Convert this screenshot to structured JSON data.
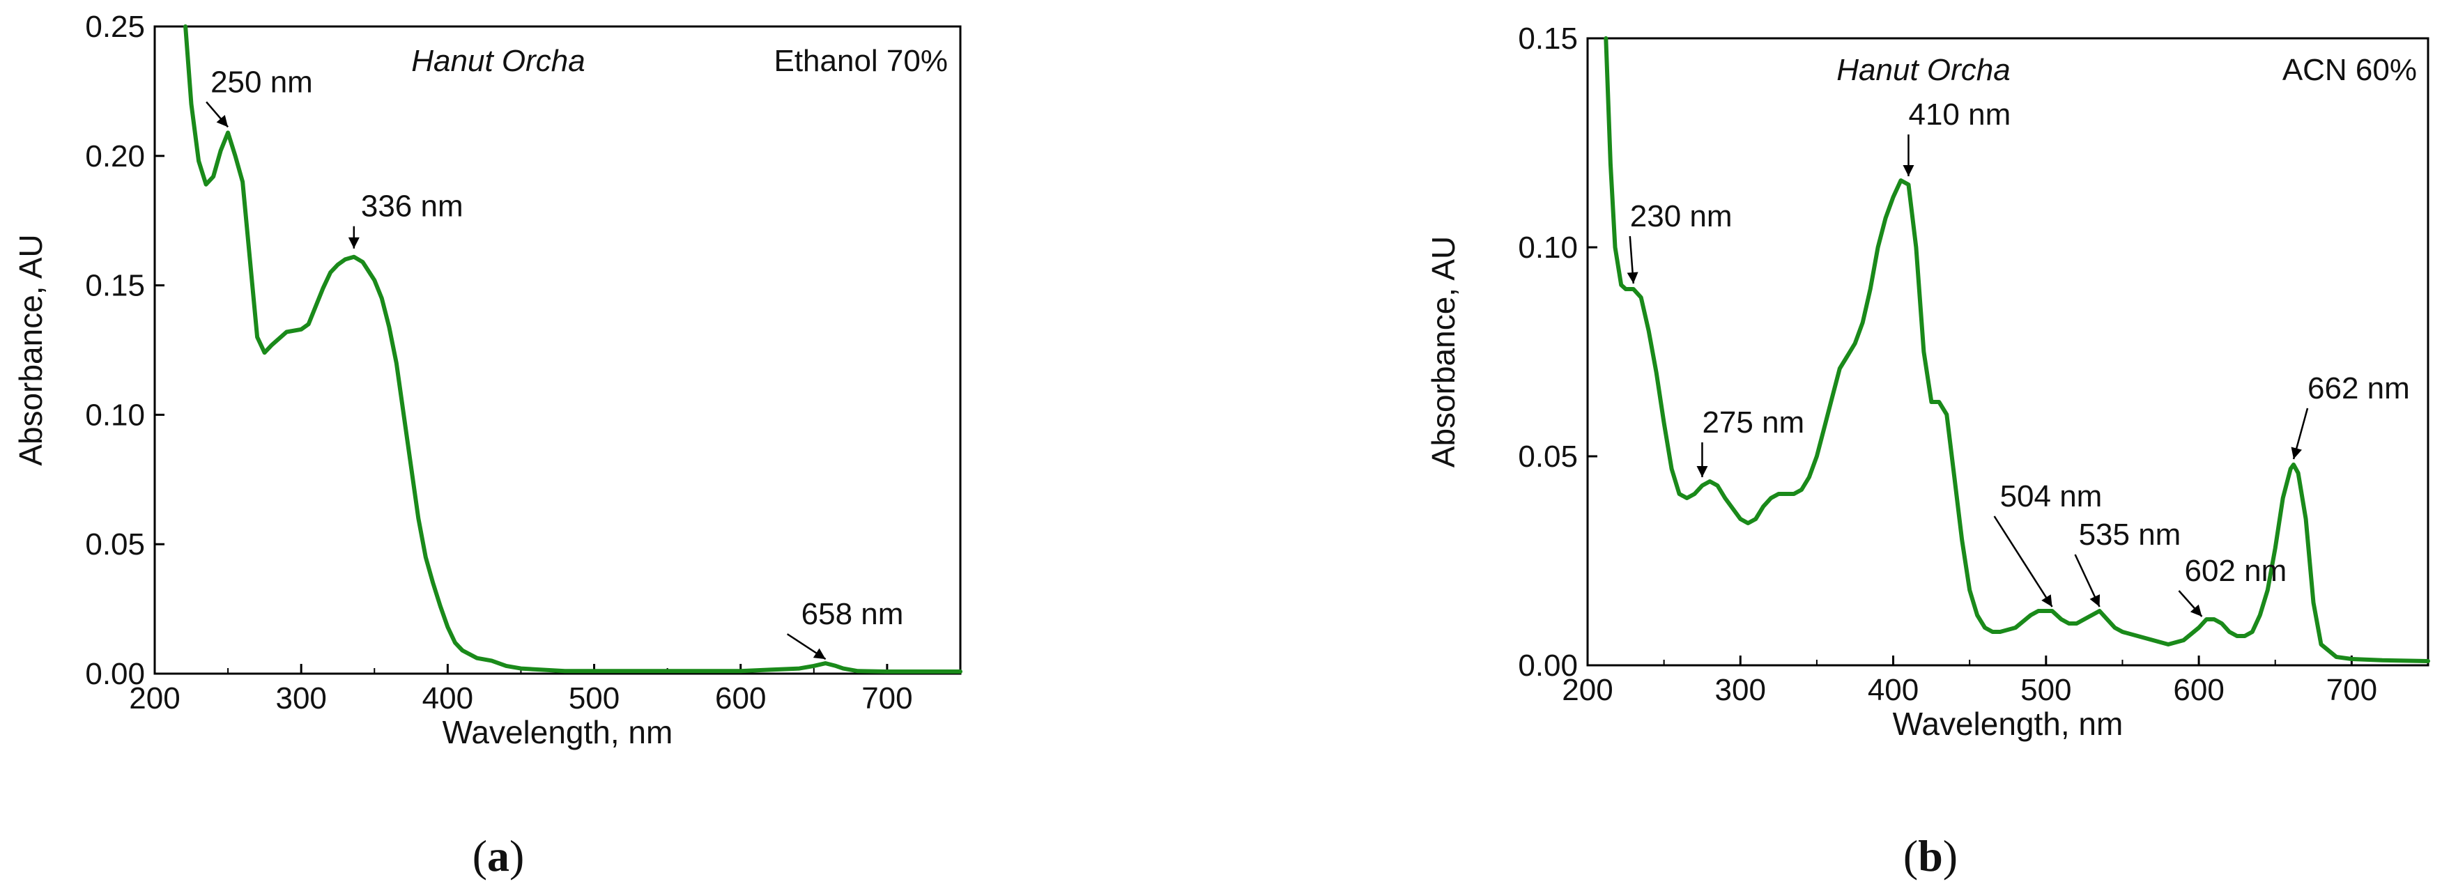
{
  "chart_data": [
    {
      "type": "line",
      "panel_label": "a",
      "sample_label": "Hanut Orcha",
      "solvent_label": "Ethanol 70%",
      "xlabel": "Wavelength, nm",
      "ylabel": "Absorbance, AU",
      "xlim": [
        200,
        750
      ],
      "ylim": [
        0,
        0.25
      ],
      "xticks": [
        "200",
        "300",
        "400",
        "500",
        "600",
        "700"
      ],
      "yticks": [
        "0.00",
        "0.05",
        "0.10",
        "0.15",
        "0.20",
        "0.25"
      ],
      "line_color": "#1a8a1a",
      "series": [
        {
          "x": [
            221,
            225,
            230,
            235,
            240,
            245,
            250,
            255,
            260,
            265,
            270,
            275,
            280,
            290,
            300,
            305,
            310,
            315,
            320,
            325,
            330,
            336,
            342,
            350,
            355,
            360,
            365,
            370,
            375,
            380,
            385,
            390,
            395,
            400,
            405,
            410,
            420,
            430,
            440,
            450,
            480,
            500,
            550,
            600,
            620,
            640,
            650,
            658,
            665,
            670,
            680,
            700,
            750
          ],
          "y": [
            0.25,
            0.22,
            0.198,
            0.189,
            0.192,
            0.202,
            0.209,
            0.2,
            0.19,
            0.16,
            0.13,
            0.124,
            0.127,
            0.132,
            0.133,
            0.135,
            0.142,
            0.149,
            0.155,
            0.158,
            0.16,
            0.161,
            0.159,
            0.152,
            0.145,
            0.134,
            0.12,
            0.1,
            0.08,
            0.06,
            0.045,
            0.035,
            0.026,
            0.018,
            0.012,
            0.009,
            0.006,
            0.005,
            0.003,
            0.002,
            0.001,
            0.001,
            0.001,
            0.001,
            0.0015,
            0.002,
            0.003,
            0.004,
            0.003,
            0.002,
            0.001,
            0.0008,
            0.0008
          ]
        }
      ],
      "annotations": [
        {
          "text": "250 nm",
          "x": 250,
          "y": 0.209
        },
        {
          "text": "336 nm",
          "x": 336,
          "y": 0.161
        },
        {
          "text": "658 nm",
          "x": 658,
          "y": 0.004
        }
      ]
    },
    {
      "type": "line",
      "panel_label": "b",
      "sample_label": "Hanut Orcha",
      "solvent_label": "ACN 60%",
      "xlabel": "Wavelength, nm",
      "ylabel": "Absorbance, AU",
      "xlim": [
        200,
        750
      ],
      "ylim": [
        0,
        0.15
      ],
      "xticks": [
        "200",
        "300",
        "400",
        "500",
        "600",
        "700"
      ],
      "yticks": [
        "0.00",
        "0.05",
        "0.10",
        "0.15"
      ],
      "line_color": "#1a8a1a",
      "series": [
        {
          "x": [
            212,
            215,
            218,
            222,
            225,
            230,
            235,
            240,
            245,
            250,
            255,
            260,
            265,
            270,
            275,
            280,
            285,
            290,
            300,
            305,
            310,
            315,
            320,
            325,
            330,
            335,
            340,
            345,
            350,
            355,
            360,
            365,
            370,
            375,
            380,
            385,
            390,
            395,
            400,
            405,
            410,
            415,
            420,
            425,
            430,
            435,
            440,
            445,
            450,
            455,
            460,
            465,
            470,
            480,
            490,
            495,
            500,
            504,
            510,
            515,
            520,
            525,
            530,
            535,
            540,
            545,
            550,
            560,
            570,
            580,
            590,
            600,
            605,
            610,
            615,
            620,
            625,
            630,
            635,
            640,
            645,
            650,
            655,
            660,
            662,
            665,
            670,
            675,
            680,
            690,
            700,
            720,
            750
          ],
          "y": [
            0.15,
            0.12,
            0.1,
            0.091,
            0.09,
            0.09,
            0.088,
            0.08,
            0.07,
            0.058,
            0.047,
            0.041,
            0.04,
            0.041,
            0.043,
            0.044,
            0.043,
            0.04,
            0.035,
            0.034,
            0.035,
            0.038,
            0.04,
            0.041,
            0.041,
            0.041,
            0.042,
            0.045,
            0.05,
            0.057,
            0.064,
            0.071,
            0.074,
            0.077,
            0.082,
            0.09,
            0.1,
            0.107,
            0.112,
            0.116,
            0.115,
            0.1,
            0.075,
            0.063,
            0.063,
            0.06,
            0.045,
            0.03,
            0.018,
            0.012,
            0.009,
            0.008,
            0.008,
            0.009,
            0.012,
            0.013,
            0.013,
            0.013,
            0.011,
            0.01,
            0.01,
            0.011,
            0.012,
            0.013,
            0.011,
            0.009,
            0.008,
            0.007,
            0.006,
            0.005,
            0.006,
            0.009,
            0.011,
            0.011,
            0.01,
            0.008,
            0.007,
            0.007,
            0.008,
            0.012,
            0.018,
            0.028,
            0.04,
            0.047,
            0.048,
            0.046,
            0.035,
            0.015,
            0.005,
            0.002,
            0.0015,
            0.0012,
            0.001
          ]
        }
      ],
      "annotations": [
        {
          "text": "230 nm",
          "x": 230,
          "y": 0.09
        },
        {
          "text": "275 nm",
          "x": 275,
          "y": 0.044
        },
        {
          "text": "410 nm",
          "x": 410,
          "y": 0.116
        },
        {
          "text": "504 nm",
          "x": 504,
          "y": 0.013
        },
        {
          "text": "535 nm",
          "x": 535,
          "y": 0.013
        },
        {
          "text": "602 nm",
          "x": 602,
          "y": 0.011
        },
        {
          "text": "662 nm",
          "x": 662,
          "y": 0.048
        }
      ]
    }
  ]
}
